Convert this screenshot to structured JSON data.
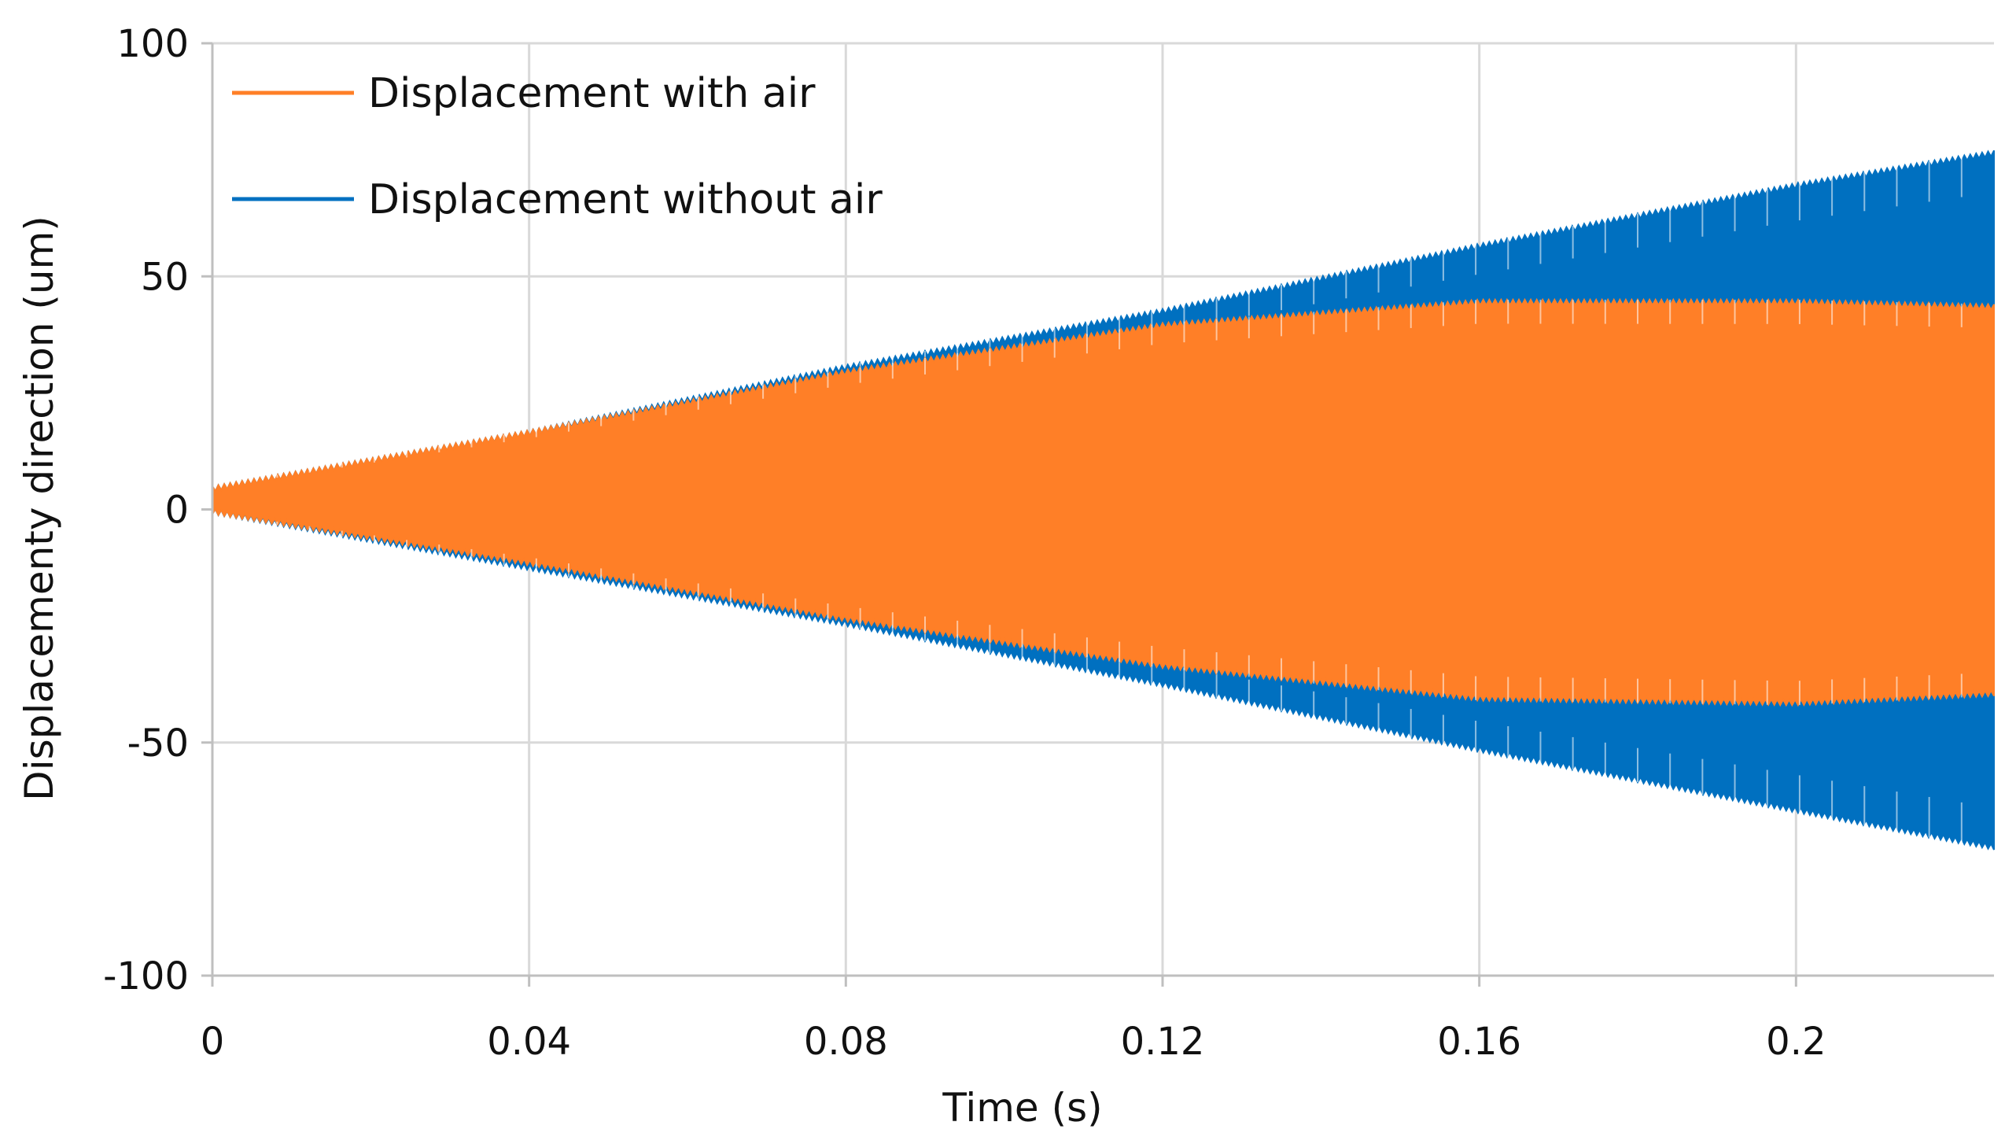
{
  "chart_data": {
    "type": "line",
    "title": "",
    "xlabel": "Time (s)",
    "ylabel": "Displacementy direction (um)",
    "xlim": [
      0,
      0.225
    ],
    "ylim": [
      -100,
      100
    ],
    "x_ticks": [
      0,
      0.04,
      0.08,
      0.12,
      0.16,
      0.2
    ],
    "x_tick_labels": [
      "0",
      "0.04",
      "0.08",
      "0.12",
      "0.16",
      "0.2"
    ],
    "y_ticks": [
      100,
      50,
      0,
      -50,
      -100
    ],
    "y_tick_labels": [
      "100",
      "50",
      "0",
      "-50",
      "-100"
    ],
    "grid": true,
    "legend_position": "top-left",
    "series": [
      {
        "name": "Displacement without air",
        "color": "#0070C0",
        "envelope_time": [
          0,
          0.04,
          0.08,
          0.12,
          0.16,
          0.2,
          0.225
        ],
        "upper": [
          5,
          17,
          31,
          43,
          57,
          70,
          77
        ],
        "lower": [
          -1,
          -13,
          -25,
          -38,
          -52,
          -65,
          -73
        ]
      },
      {
        "name": "Displacement with air",
        "color": "#FF7F27",
        "envelope_time": [
          0,
          0.04,
          0.08,
          0.12,
          0.16,
          0.2,
          0.225
        ],
        "upper": [
          5,
          17,
          30,
          40,
          45,
          45,
          44
        ],
        "lower": [
          -1,
          -12,
          -24,
          -34,
          -41,
          -42,
          -40
        ]
      }
    ]
  }
}
